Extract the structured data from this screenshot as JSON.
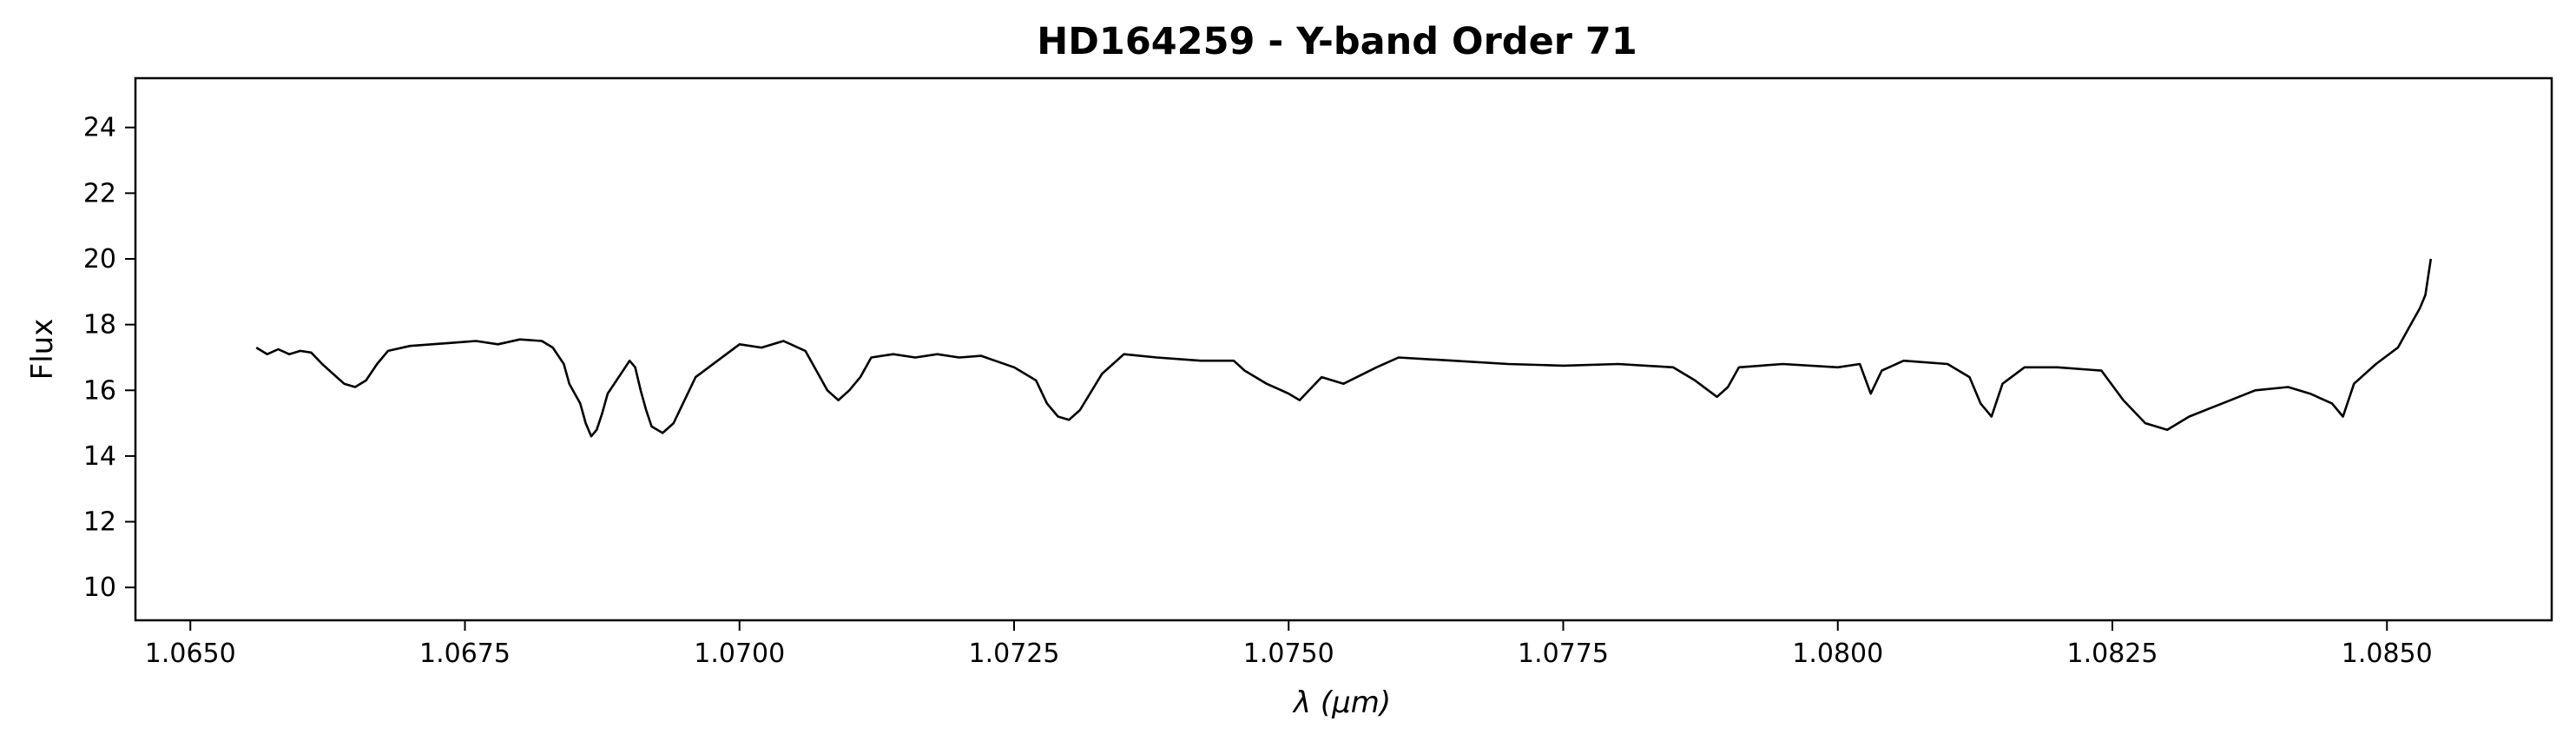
{
  "chart_data": {
    "type": "line",
    "title": "HD164259 - Y-band Order 71",
    "xlabel": "λ (μm)",
    "ylabel": "Flux",
    "xlim": [
      1.0645,
      1.0865
    ],
    "ylim": [
      9.0,
      25.5
    ],
    "xticks": [
      "1.0650",
      "1.0675",
      "1.0700",
      "1.0725",
      "1.0750",
      "1.0775",
      "1.0800",
      "1.0825",
      "1.0850"
    ],
    "yticks": [
      "10",
      "12",
      "14",
      "16",
      "18",
      "20",
      "22",
      "24"
    ],
    "grid": false,
    "series": [
      {
        "color": "#000000",
        "points": [
          [
            1.0656,
            17.3
          ],
          [
            1.0657,
            17.1
          ],
          [
            1.0658,
            17.25
          ],
          [
            1.0659,
            17.1
          ],
          [
            1.066,
            17.2
          ],
          [
            1.0661,
            17.15
          ],
          [
            1.0662,
            16.8
          ],
          [
            1.0663,
            16.5
          ],
          [
            1.0664,
            16.2
          ],
          [
            1.0665,
            16.1
          ],
          [
            1.0666,
            16.3
          ],
          [
            1.0667,
            16.8
          ],
          [
            1.0668,
            17.2
          ],
          [
            1.067,
            17.35
          ],
          [
            1.0672,
            17.4
          ],
          [
            1.0674,
            17.45
          ],
          [
            1.0676,
            17.5
          ],
          [
            1.0678,
            17.4
          ],
          [
            1.068,
            17.55
          ],
          [
            1.0682,
            17.5
          ],
          [
            1.0683,
            17.3
          ],
          [
            1.0684,
            16.8
          ],
          [
            1.06845,
            16.2
          ],
          [
            1.0685,
            15.9
          ],
          [
            1.06855,
            15.6
          ],
          [
            1.0686,
            15.0
          ],
          [
            1.06865,
            14.6
          ],
          [
            1.0687,
            14.8
          ],
          [
            1.06875,
            15.3
          ],
          [
            1.0688,
            15.9
          ],
          [
            1.0689,
            16.4
          ],
          [
            1.069,
            16.9
          ],
          [
            1.06905,
            16.7
          ],
          [
            1.0691,
            16.0
          ],
          [
            1.06915,
            15.4
          ],
          [
            1.0692,
            14.9
          ],
          [
            1.0693,
            14.7
          ],
          [
            1.0694,
            15.0
          ],
          [
            1.0695,
            15.7
          ],
          [
            1.0696,
            16.4
          ],
          [
            1.0698,
            16.9
          ],
          [
            1.07,
            17.4
          ],
          [
            1.0702,
            17.3
          ],
          [
            1.0704,
            17.5
          ],
          [
            1.0706,
            17.2
          ],
          [
            1.0707,
            16.6
          ],
          [
            1.0708,
            16.0
          ],
          [
            1.0709,
            15.7
          ],
          [
            1.071,
            16.0
          ],
          [
            1.0711,
            16.4
          ],
          [
            1.0712,
            17.0
          ],
          [
            1.0714,
            17.1
          ],
          [
            1.0716,
            17.0
          ],
          [
            1.0718,
            17.1
          ],
          [
            1.072,
            17.0
          ],
          [
            1.0722,
            17.05
          ],
          [
            1.0725,
            16.7
          ],
          [
            1.0727,
            16.3
          ],
          [
            1.0728,
            15.6
          ],
          [
            1.0729,
            15.2
          ],
          [
            1.073,
            15.1
          ],
          [
            1.0731,
            15.4
          ],
          [
            1.0733,
            16.5
          ],
          [
            1.0735,
            17.1
          ],
          [
            1.0738,
            17.0
          ],
          [
            1.0742,
            16.9
          ],
          [
            1.0745,
            16.9
          ],
          [
            1.0746,
            16.6
          ],
          [
            1.0748,
            16.2
          ],
          [
            1.075,
            15.9
          ],
          [
            1.0751,
            15.7
          ],
          [
            1.0753,
            16.4
          ],
          [
            1.0755,
            16.2
          ],
          [
            1.0758,
            16.7
          ],
          [
            1.076,
            17.0
          ],
          [
            1.0765,
            16.9
          ],
          [
            1.077,
            16.8
          ],
          [
            1.0775,
            16.75
          ],
          [
            1.078,
            16.8
          ],
          [
            1.0785,
            16.7
          ],
          [
            1.0787,
            16.3
          ],
          [
            1.0789,
            15.8
          ],
          [
            1.079,
            16.1
          ],
          [
            1.0791,
            16.7
          ],
          [
            1.0795,
            16.8
          ],
          [
            1.08,
            16.7
          ],
          [
            1.0802,
            16.8
          ],
          [
            1.0803,
            15.9
          ],
          [
            1.0804,
            16.6
          ],
          [
            1.0806,
            16.9
          ],
          [
            1.081,
            16.8
          ],
          [
            1.0812,
            16.4
          ],
          [
            1.0813,
            15.6
          ],
          [
            1.0814,
            15.2
          ],
          [
            1.0815,
            16.2
          ],
          [
            1.0817,
            16.7
          ],
          [
            1.082,
            16.7
          ],
          [
            1.0824,
            16.6
          ],
          [
            1.0826,
            15.7
          ],
          [
            1.0828,
            15.0
          ],
          [
            1.083,
            14.8
          ],
          [
            1.0832,
            15.2
          ],
          [
            1.0835,
            15.6
          ],
          [
            1.0838,
            16.0
          ],
          [
            1.0841,
            16.1
          ],
          [
            1.0843,
            15.9
          ],
          [
            1.0845,
            15.6
          ],
          [
            1.0846,
            15.2
          ],
          [
            1.0847,
            16.2
          ],
          [
            1.0849,
            16.8
          ],
          [
            1.0851,
            17.3
          ],
          [
            1.0852,
            17.9
          ],
          [
            1.0853,
            18.5
          ],
          [
            1.08535,
            18.9
          ],
          [
            1.0854,
            20.0
          ]
        ]
      }
    ]
  }
}
